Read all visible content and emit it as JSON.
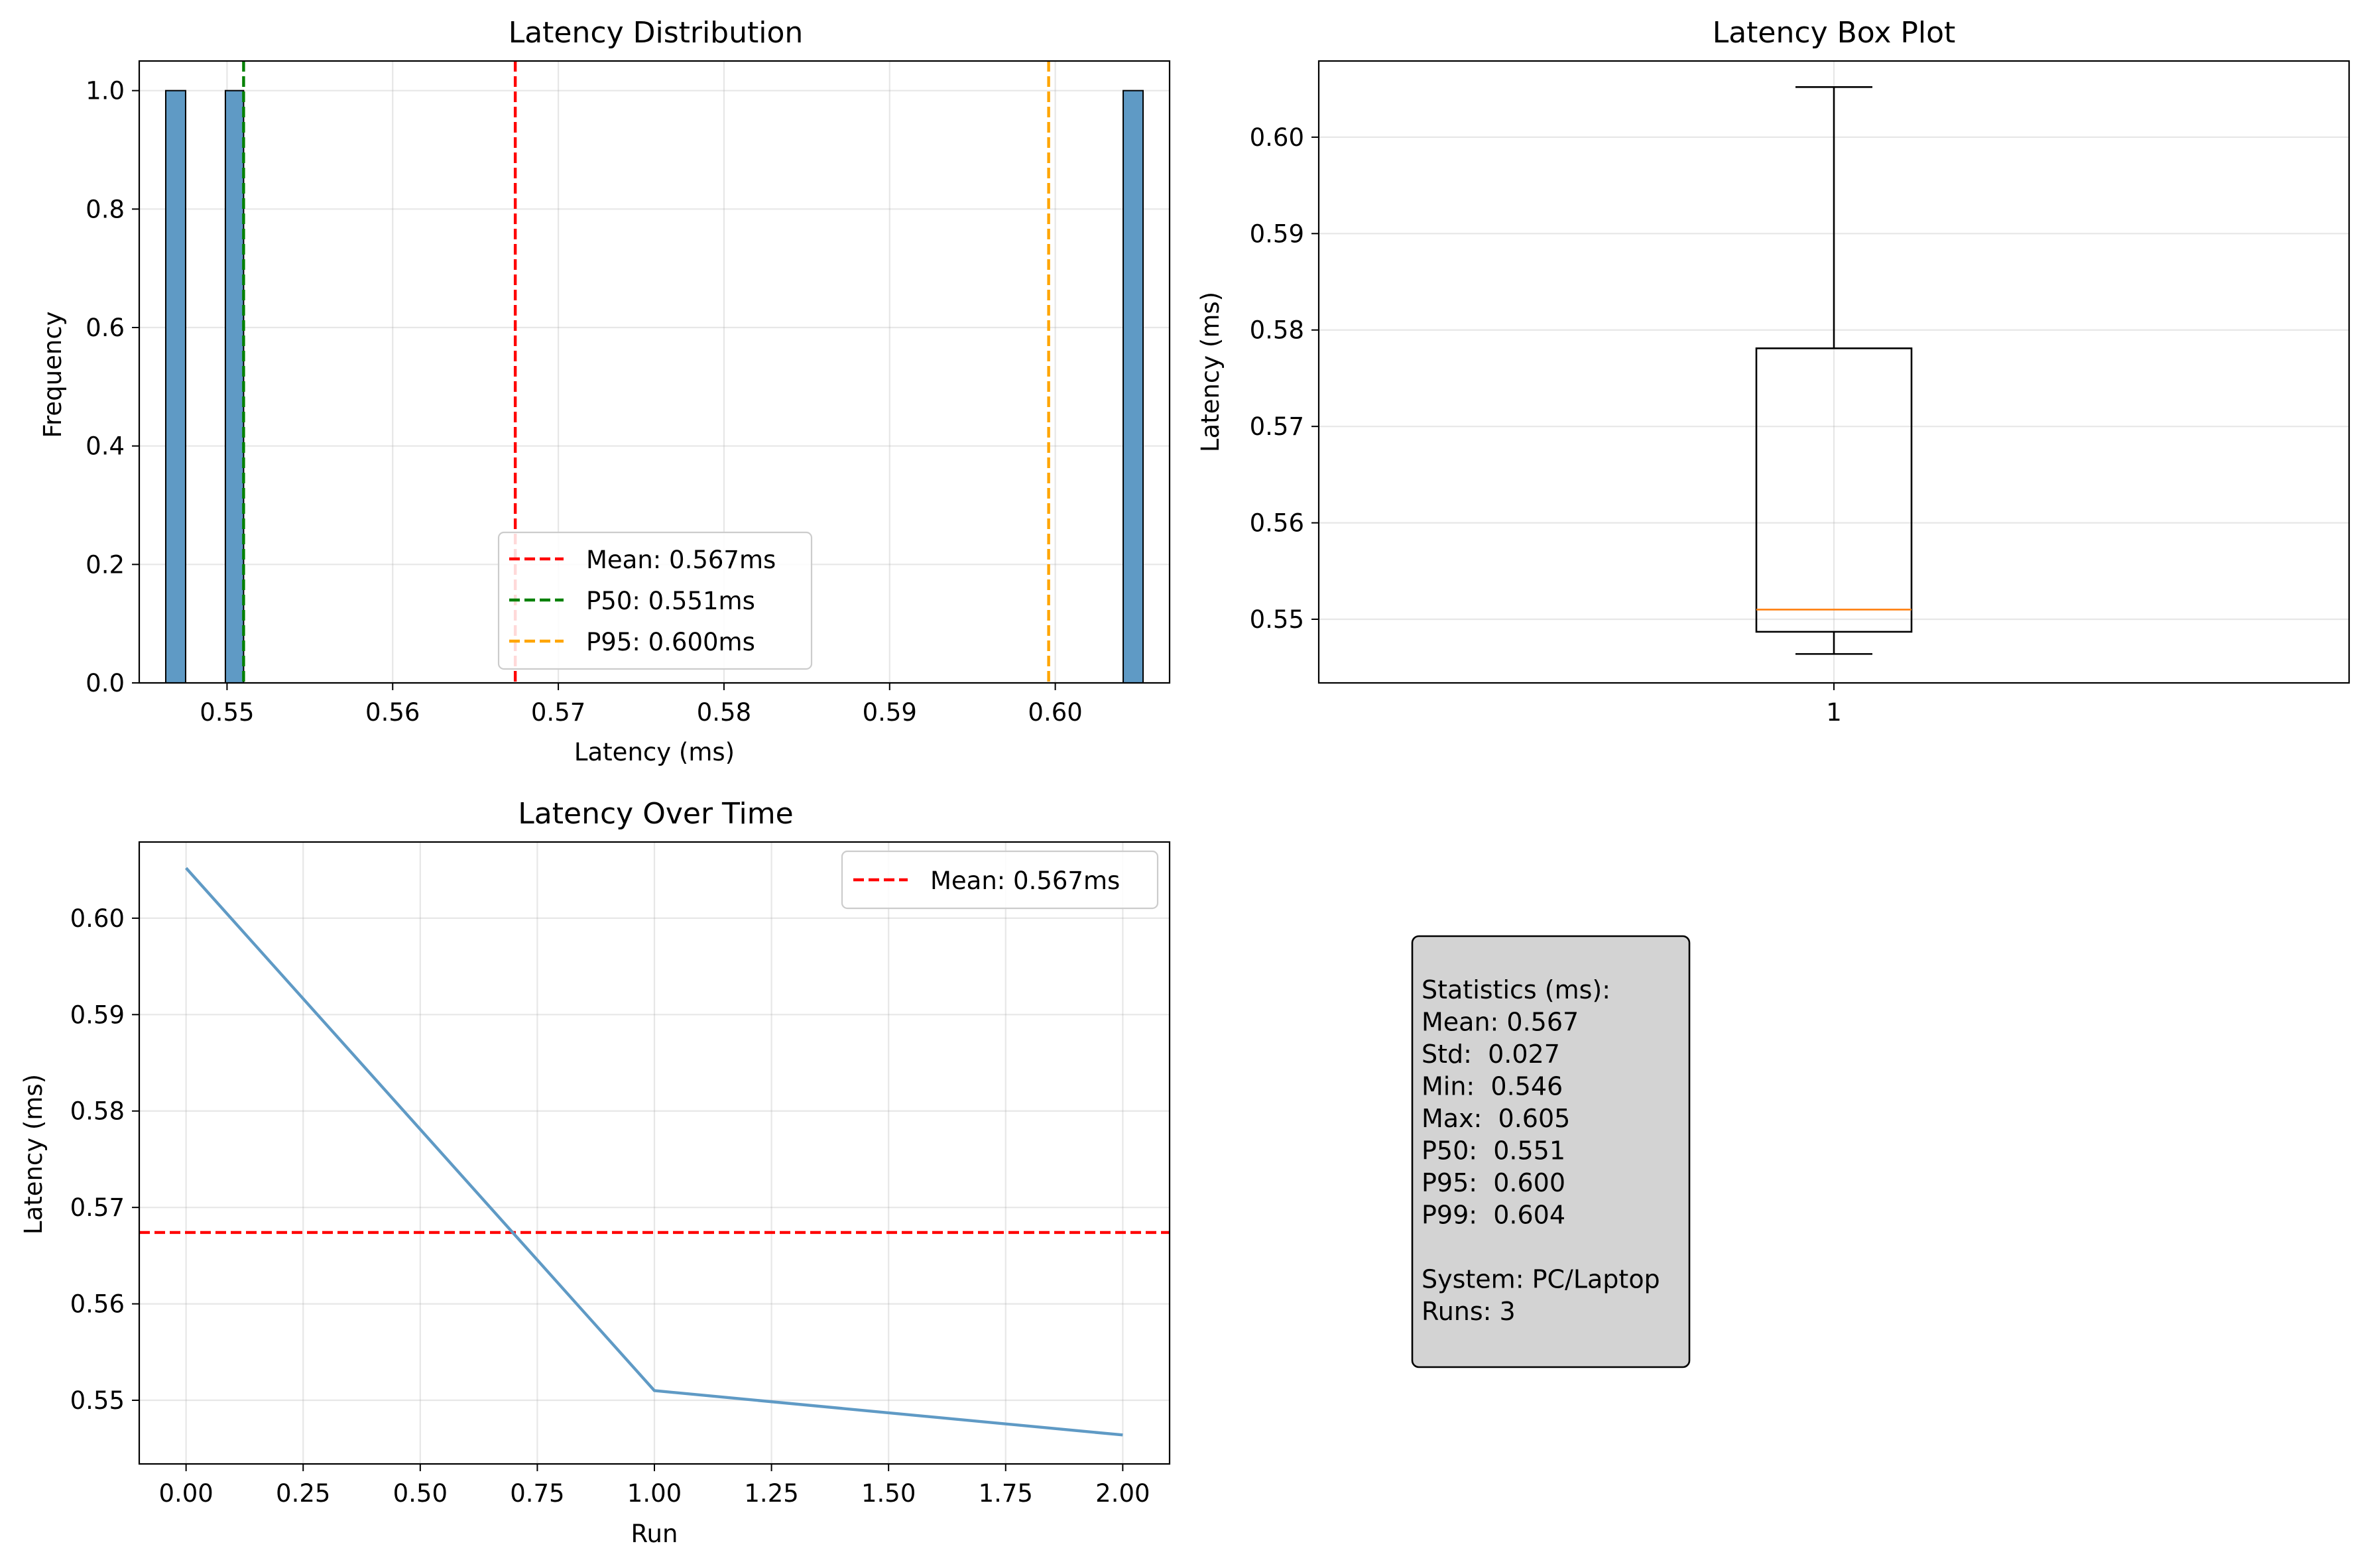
{
  "chart_data": [
    {
      "type": "histogram",
      "title": "Latency Distribution",
      "xlabel": "Latency (ms)",
      "ylabel": "Frequency",
      "xlim": [
        0.5447,
        0.6069
      ],
      "ylim": [
        0,
        1.05
      ],
      "xticks": [
        0.55,
        0.56,
        0.57,
        0.58,
        0.59,
        0.6
      ],
      "xtick_labels": [
        "0.55",
        "0.56",
        "0.57",
        "0.58",
        "0.59",
        "0.60"
      ],
      "yticks": [
        0,
        0.2,
        0.4,
        0.6,
        0.8,
        1.0
      ],
      "ytick_labels": [
        "0.0",
        "0.2",
        "0.4",
        "0.6",
        "0.8",
        "1.0"
      ],
      "grid": true,
      "bars": [
        {
          "x0": 0.5463,
          "x1": 0.5475,
          "count": 1
        },
        {
          "x0": 0.5499,
          "x1": 0.551,
          "count": 1
        },
        {
          "x0": 0.6041,
          "x1": 0.6053,
          "count": 1
        }
      ],
      "bar_color": "#5f9ac5",
      "vlines": [
        {
          "x": 0.5674,
          "label": "Mean: 0.567ms",
          "color": "#ff0000"
        },
        {
          "x": 0.551,
          "label": "P50: 0.551ms",
          "color": "#008000"
        },
        {
          "x": 0.5996,
          "label": "P95: 0.600ms",
          "color": "#ffa500"
        }
      ],
      "legend": "lower-center"
    },
    {
      "type": "box",
      "title": "Latency Box Plot",
      "xlabel": "",
      "ylabel": "Latency (ms)",
      "ylim": [
        0.5434,
        0.6079
      ],
      "yticks": [
        0.55,
        0.56,
        0.57,
        0.58,
        0.59,
        0.6
      ],
      "ytick_labels": [
        "0.55",
        "0.56",
        "0.57",
        "0.58",
        "0.59",
        "0.60"
      ],
      "xtick_labels": [
        "1"
      ],
      "grid": true,
      "box": {
        "whisker_low": 0.5464,
        "q1": 0.5487,
        "median": 0.551,
        "q3": 0.5781,
        "whisker_high": 0.6052
      },
      "median_color": "#ff7f0e"
    },
    {
      "type": "line",
      "title": "Latency Over Time",
      "xlabel": "Run",
      "ylabel": "Latency (ms)",
      "xlim": [
        -0.1,
        2.1
      ],
      "ylim": [
        0.5434,
        0.6079
      ],
      "xticks": [
        0,
        0.25,
        0.5,
        0.75,
        1.0,
        1.25,
        1.5,
        1.75,
        2.0
      ],
      "xtick_labels": [
        "0.00",
        "0.25",
        "0.50",
        "0.75",
        "1.00",
        "1.25",
        "1.50",
        "1.75",
        "2.00"
      ],
      "yticks": [
        0.55,
        0.56,
        0.57,
        0.58,
        0.59,
        0.6
      ],
      "ytick_labels": [
        "0.55",
        "0.56",
        "0.57",
        "0.58",
        "0.59",
        "0.60"
      ],
      "grid": true,
      "x": [
        0,
        1,
        2
      ],
      "y": [
        0.6052,
        0.551,
        0.5464
      ],
      "line_color": "#5f9ac5",
      "hline": {
        "y": 0.5674,
        "label": "Mean: 0.567ms",
        "color": "#ff0000"
      },
      "legend": "upper-right"
    }
  ],
  "stats_box": {
    "lines": [
      "Statistics (ms):",
      "Mean: 0.567",
      "Std:  0.027",
      "Min:  0.546",
      "Max:  0.605",
      "P50:  0.551",
      "P95:  0.600",
      "P99:  0.604",
      "",
      "System: PC/Laptop",
      "Runs: 3"
    ],
    "background": "#d3d3d3"
  }
}
